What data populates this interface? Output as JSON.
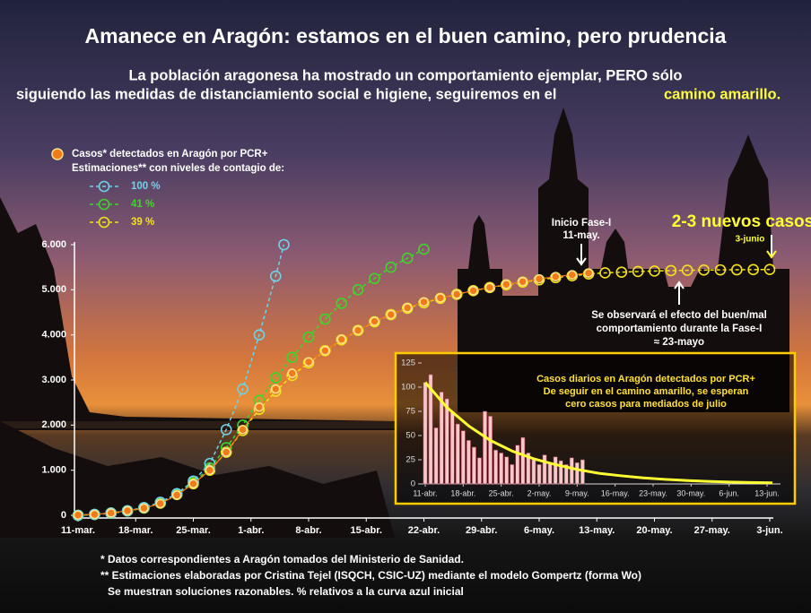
{
  "chart_data": [
    {
      "type": "line",
      "title": "Amanece en Aragón: estamos en el buen camino, pero prudencia",
      "subtitle": [
        "La población aragonesa ha mostrado un comportamiento ejemplar, PERO sólo",
        "siguiendo las medidas de distanciamiento social e higiene, seguiremos en el"
      ],
      "subtitle_highlight": "camino amarillo.",
      "legend_title": "Estimaciones** con niveles de contagio de:",
      "series": [
        {
          "name": "Casos* detectados en Aragón por PCR+",
          "color": "#f07a1a",
          "style": "filled",
          "x": [
            0,
            2,
            4,
            6,
            8,
            10,
            12,
            14,
            16,
            18,
            20,
            22,
            24,
            26,
            28,
            30,
            32,
            34,
            36,
            38,
            40,
            42,
            44,
            46,
            48,
            50,
            52,
            54,
            56,
            58,
            60,
            62
          ],
          "values": [
            5,
            20,
            50,
            100,
            160,
            260,
            450,
            700,
            1000,
            1400,
            1900,
            2400,
            2800,
            3150,
            3400,
            3650,
            3900,
            4100,
            4300,
            4450,
            4600,
            4730,
            4820,
            4900,
            4980,
            5050,
            5120,
            5180,
            5240,
            5290,
            5330,
            5370
          ]
        },
        {
          "name": "100 %",
          "color": "#6fd3e8",
          "style": "dashed",
          "x": [
            0,
            2,
            4,
            6,
            8,
            10,
            12,
            14,
            16,
            18,
            20,
            22,
            24,
            25
          ],
          "values": [
            0,
            20,
            50,
            100,
            170,
            290,
            480,
            760,
            1150,
            1900,
            2800,
            4000,
            5300,
            6000
          ]
        },
        {
          "name": "41 %",
          "color": "#3dd62a",
          "style": "dashed",
          "x": [
            0,
            2,
            4,
            6,
            8,
            10,
            12,
            14,
            16,
            18,
            20,
            22,
            24,
            26,
            28,
            30,
            32,
            34,
            36,
            38,
            40,
            42
          ],
          "values": [
            0,
            20,
            50,
            100,
            170,
            280,
            470,
            730,
            1050,
            1500,
            2000,
            2550,
            3050,
            3500,
            3950,
            4350,
            4700,
            5000,
            5250,
            5500,
            5700,
            5900
          ]
        },
        {
          "name": "39 %",
          "color": "#f2e21a",
          "style": "dashed",
          "x": [
            0,
            2,
            4,
            6,
            8,
            10,
            12,
            14,
            16,
            18,
            20,
            22,
            24,
            26,
            28,
            30,
            32,
            34,
            36,
            38,
            40,
            42,
            44,
            46,
            48,
            50,
            52,
            54,
            56,
            58,
            60,
            62,
            64,
            66,
            68,
            70,
            72,
            74,
            76,
            78,
            80,
            82,
            84
          ],
          "values": [
            0,
            20,
            45,
            95,
            160,
            270,
            460,
            700,
            1000,
            1400,
            1880,
            2350,
            2750,
            3100,
            3380,
            3650,
            3890,
            4100,
            4290,
            4450,
            4590,
            4710,
            4810,
            4900,
            4980,
            5050,
            5110,
            5170,
            5220,
            5270,
            5310,
            5350,
            5375,
            5390,
            5405,
            5415,
            5425,
            5432,
            5437,
            5441,
            5444,
            5447,
            5450
          ]
        }
      ],
      "annotations": [
        "Inicio Fase-I",
        "11-may.",
        "2-3 nuevos casos",
        "3-junio",
        "Se observará el efecto del buen/mal",
        "comportamiento durante la Fase-I",
        "≈ 23-mayo"
      ],
      "notes": [
        "* Datos correspondientes a Aragón tomados del Ministerio de Sanidad.",
        "** Estimaciones elaboradas por  Cristina Tejel (ISQCH, CSIC-UZ) mediante el modelo Gompertz (forma Wo)",
        "Se muestran soluciones razonables.  % relativos a la curva azul inicial"
      ],
      "xlim": [
        0,
        84
      ],
      "xticks": [
        {
          "value": 0,
          "label": "11-mar."
        },
        {
          "value": 7,
          "label": "18-mar."
        },
        {
          "value": 14,
          "label": "25-mar."
        },
        {
          "value": 21,
          "label": "1-abr."
        },
        {
          "value": 28,
          "label": "8-abr."
        },
        {
          "value": 35,
          "label": "15-abr."
        },
        {
          "value": 42,
          "label": "22-abr."
        },
        {
          "value": 49,
          "label": "29-abr."
        },
        {
          "value": 56,
          "label": "6-may."
        },
        {
          "value": 63,
          "label": "13-may."
        },
        {
          "value": 70,
          "label": "20-may."
        },
        {
          "value": 77,
          "label": "27-may."
        },
        {
          "value": 84,
          "label": "3-jun."
        }
      ],
      "ylim": [
        0,
        6000
      ],
      "yticks": [
        0,
        {
          "value": 1000,
          "label": "1.000"
        },
        {
          "value": 2000,
          "label": "2.000"
        },
        {
          "value": 3000,
          "label": "3.000"
        },
        {
          "value": 4000,
          "label": "4.000"
        },
        {
          "value": 5000,
          "label": "5.000"
        },
        {
          "value": 6000,
          "label": "6.000"
        }
      ]
    },
    {
      "type": "bar",
      "title": [
        "Casos diarios en Aragón detectados por PCR+",
        "De seguir en el camino amarillo, se esperan",
        "cero casos para mediados de julio"
      ],
      "series": [
        {
          "type": "bar",
          "color": "#f6c9c9",
          "x": [
            0,
            1,
            2,
            3,
            4,
            5,
            6,
            7,
            8,
            9,
            10,
            11,
            12,
            13,
            14,
            15,
            16,
            17,
            18,
            19,
            20,
            21,
            22,
            23,
            24,
            25,
            26,
            27,
            28,
            29
          ],
          "values": [
            105,
            113,
            58,
            95,
            88,
            75,
            62,
            55,
            45,
            38,
            27,
            75,
            70,
            35,
            32,
            28,
            20,
            40,
            48,
            32,
            25,
            20,
            30,
            22,
            28,
            24,
            20,
            27,
            22,
            25
          ]
        },
        {
          "type": "line",
          "color": "#ffff33",
          "x": [
            0,
            4,
            8,
            12,
            16,
            20,
            24,
            28,
            32,
            36,
            40,
            44,
            48,
            52,
            56,
            60,
            64
          ],
          "values": [
            105,
            79,
            60,
            45,
            34,
            26,
            20,
            15,
            11,
            8.5,
            6.4,
            4.8,
            3.6,
            2.7,
            2,
            1.5,
            1.2
          ]
        }
      ],
      "xlim": [
        0,
        63
      ],
      "xticks": [
        {
          "value": 0,
          "label": "11-abr."
        },
        {
          "value": 7,
          "label": "18-abr."
        },
        {
          "value": 14,
          "label": "25-abr."
        },
        {
          "value": 21,
          "label": "2-may."
        },
        {
          "value": 28,
          "label": "9-may."
        },
        {
          "value": 35,
          "label": "16-may."
        },
        {
          "value": 42,
          "label": "23-may."
        },
        {
          "value": 49,
          "label": "30-may."
        },
        {
          "value": 56,
          "label": "6-jun."
        },
        {
          "value": 63,
          "label": "13-jun."
        }
      ],
      "ylim": [
        0,
        125
      ],
      "yticks": [
        0,
        25,
        50,
        75,
        100,
        125
      ]
    }
  ]
}
